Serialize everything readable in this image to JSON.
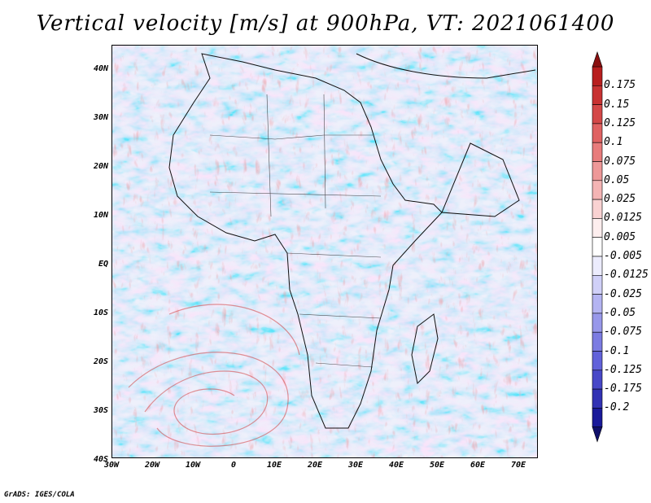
{
  "title": "Vertical velocity [m/s] at 900hPa, VT: 2021061400",
  "footer": "GrADS: IGES/COLA",
  "map": {
    "lat_labels": [
      "40N",
      "30N",
      "20N",
      "10N",
      "EQ",
      "10S",
      "20S",
      "30S",
      "40S"
    ],
    "lon_labels": [
      "30W",
      "20W",
      "10W",
      "0",
      "10E",
      "20E",
      "30E",
      "40E",
      "50E",
      "60E",
      "70E"
    ],
    "lon_range": [
      -30,
      75
    ],
    "lat_range": [
      -40,
      45
    ],
    "field_palette": {
      "strong_up": "#b0202a",
      "up": "#e88a8a",
      "neutral": "#ffffff",
      "down": "#9a9ae8",
      "strong_down": "#2a1aa0"
    }
  },
  "colorbar": {
    "levels": [
      "0.175",
      "0.15",
      "0.125",
      "0.1",
      "0.075",
      "0.05",
      "0.025",
      "0.0125",
      "0.005",
      "-0.005",
      "-0.0125",
      "-0.025",
      "-0.05",
      "-0.075",
      "-0.1",
      "-0.125",
      "-0.175",
      "-0.2"
    ],
    "colors": [
      "#b81e1e",
      "#c83232",
      "#d44848",
      "#e06262",
      "#e87c7c",
      "#ee9898",
      "#f4b4b4",
      "#f9d2d2",
      "#fdeeee",
      "#ffffff",
      "#ececfd",
      "#d0d0f8",
      "#b4b4f2",
      "#9898ea",
      "#7c7ce2",
      "#6262da",
      "#4848c8",
      "#3232b4",
      "#1a1a9a"
    ]
  }
}
